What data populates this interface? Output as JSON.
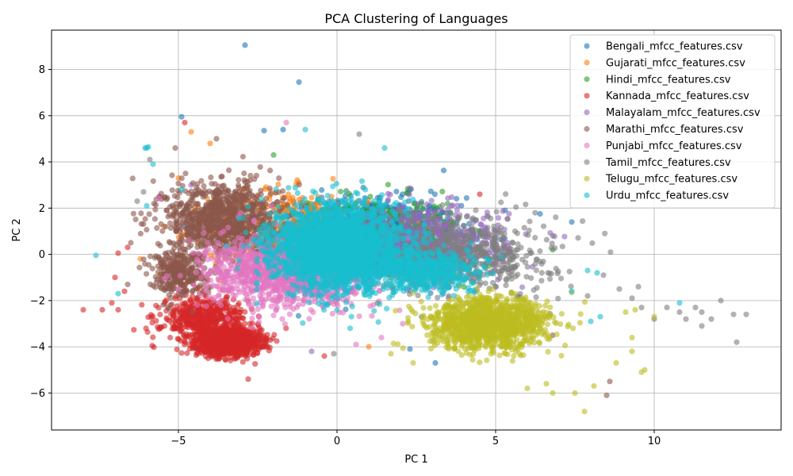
{
  "chart_data": {
    "type": "scatter",
    "title": "PCA Clustering of Languages",
    "xlabel": "PC 1",
    "ylabel": "PC 2",
    "xlim": [
      -9.0,
      14.0
    ],
    "ylim": [
      -7.6,
      9.7
    ],
    "xticks": [
      -5,
      0,
      5,
      10
    ],
    "yticks": [
      -6,
      -4,
      -2,
      0,
      2,
      4,
      6,
      8
    ],
    "xtick_labels": [
      "−5",
      "0",
      "5",
      "10"
    ],
    "ytick_labels": [
      "−6",
      "−4",
      "−2",
      "0",
      "2",
      "4",
      "6",
      "8"
    ],
    "grid": true,
    "legend_position": "top-right",
    "marker_alpha": 0.6,
    "series": [
      {
        "name": "Bengali_mfcc_features.csv",
        "color": "#1f77b4",
        "clusters": [
          {
            "cx": 1.0,
            "cy": 0.8,
            "sx": 2.6,
            "sy": 1.5,
            "n": 900
          }
        ],
        "points": [
          [
            -2.9,
            9.05
          ],
          [
            -1.2,
            7.45
          ],
          [
            -4.9,
            5.95
          ],
          [
            -2.3,
            5.35
          ],
          [
            -1.7,
            5.4
          ],
          [
            7.4,
            1.4
          ],
          [
            6.4,
            1.75
          ],
          [
            2.3,
            -4.1
          ],
          [
            3.1,
            -4.7
          ]
        ]
      },
      {
        "name": "Gujarati_mfcc_features.csv",
        "color": "#ff7f0e",
        "clusters": [
          {
            "cx": -1.5,
            "cy": 1.0,
            "sx": 2.3,
            "sy": 1.6,
            "n": 500
          }
        ],
        "points": [
          [
            -4.6,
            5.3
          ],
          [
            -4.0,
            4.8
          ],
          [
            -5.0,
            3.3
          ],
          [
            -6.2,
            -0.2
          ],
          [
            1.0,
            -4.0
          ],
          [
            4.0,
            -3.6
          ]
        ]
      },
      {
        "name": "Hindi_mfcc_features.csv",
        "color": "#2ca02c",
        "clusters": [
          {
            "cx": 1.5,
            "cy": 0.8,
            "sx": 2.2,
            "sy": 1.4,
            "n": 500
          }
        ],
        "points": [
          [
            -2.0,
            4.3
          ],
          [
            6.8,
            0.2
          ],
          [
            4.8,
            -0.5
          ]
        ]
      },
      {
        "name": "Kannada_mfcc_features.csv",
        "color": "#d62728",
        "clusters": [
          {
            "cx": -3.4,
            "cy": -3.8,
            "sx": 0.9,
            "sy": 0.5,
            "n": 1200
          },
          {
            "cx": -4.2,
            "cy": -2.8,
            "sx": 1.2,
            "sy": 0.9,
            "n": 500
          }
        ],
        "points": [
          [
            -8.0,
            -2.4
          ],
          [
            -7.4,
            -2.4
          ],
          [
            -7.1,
            -2.1
          ],
          [
            -6.9,
            -2.4
          ],
          [
            -6.6,
            0.3
          ],
          [
            -6.9,
            0.05
          ],
          [
            -7.0,
            -1.0
          ],
          [
            -6.7,
            -1.6
          ],
          [
            -5.6,
            2.5
          ],
          [
            -4.8,
            5.7
          ],
          [
            4.5,
            2.6
          ],
          [
            -2.8,
            -5.4
          ],
          [
            -0.4,
            -4.4
          ]
        ]
      },
      {
        "name": "Malayalam_mfcc_features.csv",
        "color": "#9467bd",
        "clusters": [
          {
            "cx": 2.5,
            "cy": 0.5,
            "sx": 2.6,
            "sy": 1.4,
            "n": 700
          }
        ],
        "points": [
          [
            -4.6,
            3.0
          ],
          [
            -5.6,
            2.5
          ],
          [
            -0.8,
            -4.2
          ]
        ]
      },
      {
        "name": "Marathi_mfcc_features.csv",
        "color": "#8c564b",
        "clusters": [
          {
            "cx": -3.6,
            "cy": 1.5,
            "sx": 1.6,
            "sy": 1.5,
            "n": 1000
          },
          {
            "cx": -5.0,
            "cy": -0.8,
            "sx": 0.8,
            "sy": 0.9,
            "n": 300
          }
        ],
        "points": [
          [
            -3.8,
            5.0
          ],
          [
            -6.6,
            -1.3
          ],
          [
            8.5,
            -6.1
          ],
          [
            8.6,
            -5.5
          ],
          [
            6.8,
            -3.5
          ],
          [
            -6.5,
            0.5
          ],
          [
            -5.1,
            4.6
          ]
        ]
      },
      {
        "name": "Punjabi_mfcc_features.csv",
        "color": "#e377c2",
        "clusters": [
          {
            "cx": -1.5,
            "cy": -0.8,
            "sx": 2.4,
            "sy": 1.4,
            "n": 1200
          }
        ],
        "points": [
          [
            -1.6,
            5.7
          ],
          [
            -5.6,
            2.4
          ],
          [
            0.6,
            -3.9
          ],
          [
            1.4,
            -3.6
          ]
        ]
      },
      {
        "name": "Tamil_mfcc_features.csv",
        "color": "#7f7f7f",
        "clusters": [
          {
            "cx": 4.0,
            "cy": 0.0,
            "sx": 2.6,
            "sy": 1.5,
            "n": 600
          }
        ],
        "points": [
          [
            8.9,
            -1.5
          ],
          [
            9.5,
            -1.4
          ],
          [
            9.6,
            -2.3
          ],
          [
            10.0,
            -2.8
          ],
          [
            10.8,
            -2.5
          ],
          [
            11.0,
            -2.8
          ],
          [
            11.3,
            -2.3
          ],
          [
            11.5,
            -2.5
          ],
          [
            11.5,
            -3.1
          ],
          [
            11.8,
            -2.8
          ],
          [
            12.1,
            -2.0
          ],
          [
            12.5,
            -2.6
          ],
          [
            12.9,
            -2.6
          ],
          [
            12.6,
            -3.8
          ],
          [
            10.4,
            -2.3
          ],
          [
            9.3,
            -1.9
          ],
          [
            0.7,
            5.2
          ],
          [
            -6.1,
            2.7
          ],
          [
            -6.3,
            2.3
          ],
          [
            -5.9,
            4.1
          ],
          [
            -0.1,
            -4.3
          ],
          [
            7.9,
            -1.8
          ],
          [
            8.4,
            -0.9
          ]
        ]
      },
      {
        "name": "Telugu_mfcc_features.csv",
        "color": "#bcbd22",
        "clusters": [
          {
            "cx": 4.8,
            "cy": -3.0,
            "sx": 1.7,
            "sy": 1.0,
            "n": 1300
          }
        ],
        "points": [
          [
            7.8,
            -6.8
          ],
          [
            7.5,
            -6.0
          ],
          [
            8.1,
            -5.7
          ],
          [
            6.6,
            -5.6
          ],
          [
            6.0,
            -5.8
          ],
          [
            9.6,
            -5.1
          ],
          [
            9.7,
            -5.0
          ],
          [
            9.3,
            -4.2
          ],
          [
            9.3,
            -3.6
          ],
          [
            8.8,
            -4.7
          ],
          [
            10.0,
            -2.7
          ],
          [
            9.4,
            -2.4
          ],
          [
            9.1,
            -2.5
          ],
          [
            6.8,
            -6.0
          ],
          [
            2.4,
            -4.7
          ],
          [
            1.7,
            -4.3
          ]
        ]
      },
      {
        "name": "Urdu_mfcc_features.csv",
        "color": "#17becf",
        "clusters": [
          {
            "cx": 0.0,
            "cy": 0.3,
            "sx": 1.8,
            "sy": 1.6,
            "n": 2600
          },
          {
            "cx": 2.8,
            "cy": -0.7,
            "sx": 1.6,
            "sy": 0.8,
            "n": 500
          }
        ],
        "points": [
          [
            -6.0,
            4.6
          ],
          [
            -5.95,
            4.65
          ],
          [
            -6.05,
            4.6
          ],
          [
            -7.6,
            -0.05
          ],
          [
            -6.0,
            2.1
          ],
          [
            -6.9,
            -1.7
          ],
          [
            -1.0,
            5.4
          ],
          [
            1.5,
            4.6
          ],
          [
            -4.9,
            2.8
          ],
          [
            -5.8,
            3.9
          ],
          [
            8.0,
            -2.9
          ],
          [
            8.3,
            -2.7
          ],
          [
            10.8,
            -2.1
          ],
          [
            7.9,
            -0.7
          ],
          [
            7.4,
            -1.6
          ],
          [
            8.2,
            -0.8
          ]
        ]
      }
    ]
  }
}
